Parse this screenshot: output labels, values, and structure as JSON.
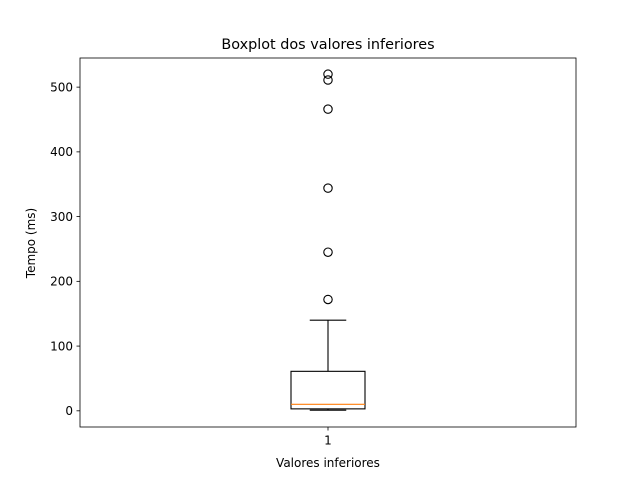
{
  "chart_data": {
    "type": "box",
    "title": "Boxplot dos valores inferiores",
    "xlabel": "Valores inferiores",
    "ylabel": "Tempo (ms)",
    "categories": [
      "1"
    ],
    "ylim": [
      -25,
      545
    ],
    "yticks": [
      0,
      100,
      200,
      300,
      400,
      500
    ],
    "grid": false,
    "boxes": [
      {
        "category": "1",
        "whisker_low": 1,
        "q1": 3,
        "median": 10,
        "q3": 61,
        "whisker_high": 140,
        "outliers": [
          172,
          245,
          344,
          466,
          511,
          520
        ]
      }
    ],
    "colors": {
      "box": "#000000",
      "median": "#ff7f0e",
      "outlier_edge": "#000000"
    }
  }
}
